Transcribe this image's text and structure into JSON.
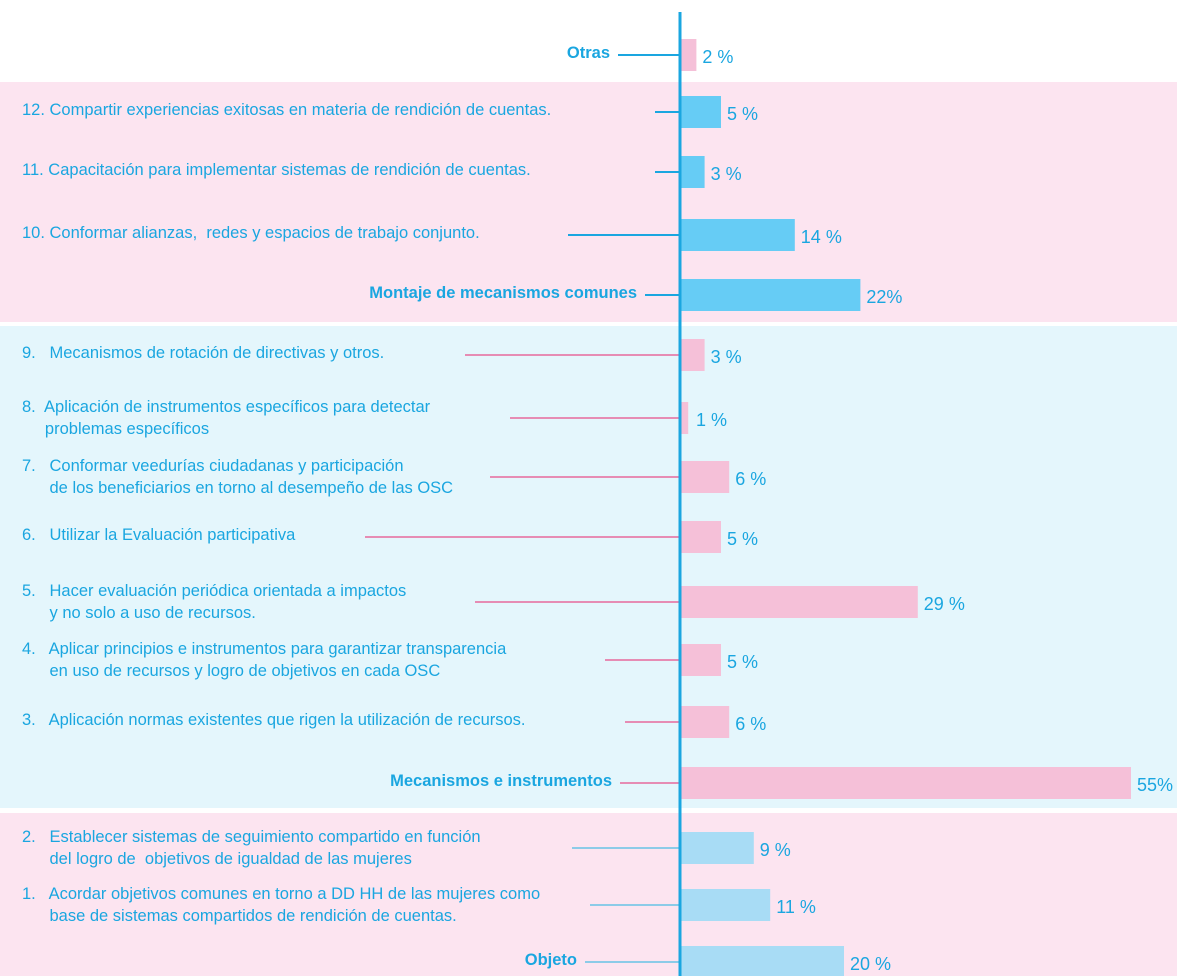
{
  "chart_data": {
    "type": "bar",
    "categories": [
      "Otras",
      "12. Compartir experiencias exitosas en materia de rendición de cuentas.",
      "11. Capacitación para implementar sistemas de rendición de cuentas.",
      "10. Conformar alianzas,  redes y espacios de trabajo conjunto.",
      "Montaje de mecanismos comunes",
      "9.   Mecanismos de rotación de directivas y otros.",
      "8.  Aplicación de instrumentos específicos para detectar\n     problemas específicos",
      "7.   Conformar veedurías ciudadanas y participación\n      de los beneficiarios en torno al desempeño de las OSC",
      "6.   Utilizar la Evaluación participativa",
      "5.   Hacer evaluación periódica orientada a impactos\n      y no solo a uso de recursos.",
      "4.   Aplicar principios e instrumentos para garantizar transparencia\n      en uso de recursos y logro de objetivos en cada OSC",
      "3.   Aplicación normas existentes que rigen la utilización de recursos.",
      "Mecanismos e instrumentos",
      "2.   Establecer sistemas de seguimiento compartido en función\n      del logro de  objetivos de igualdad de las mujeres",
      "1.   Acordar objetivos comunes en torno a DD HH de las mujeres como\n      base de sistemas compartidos de rendición de cuentas.",
      "Objeto"
    ],
    "values": [
      2,
      5,
      3,
      14,
      22,
      3,
      1,
      6,
      5,
      29,
      5,
      6,
      55,
      9,
      11,
      20
    ],
    "value_labels": [
      "2 %",
      "5 %",
      "3 %",
      "14 %",
      "22%",
      "3 %",
      "1 %",
      "6 %",
      "5 %",
      "29 %",
      "5 %",
      "6 %",
      "55%",
      "9 %",
      "11 %",
      "20 %"
    ],
    "colors": [
      "#f5c0d8",
      "#66ccf5",
      "#66ccf5",
      "#66ccf5",
      "#66ccf5",
      "#f5c0d8",
      "#f5c0d8",
      "#f5c0d8",
      "#f5c0d8",
      "#f5c0d8",
      "#f5c0d8",
      "#f5c0d8",
      "#f5c0d8",
      "#a8dcf5",
      "#a8dcf5",
      "#a8dcf5"
    ]
  }
}
